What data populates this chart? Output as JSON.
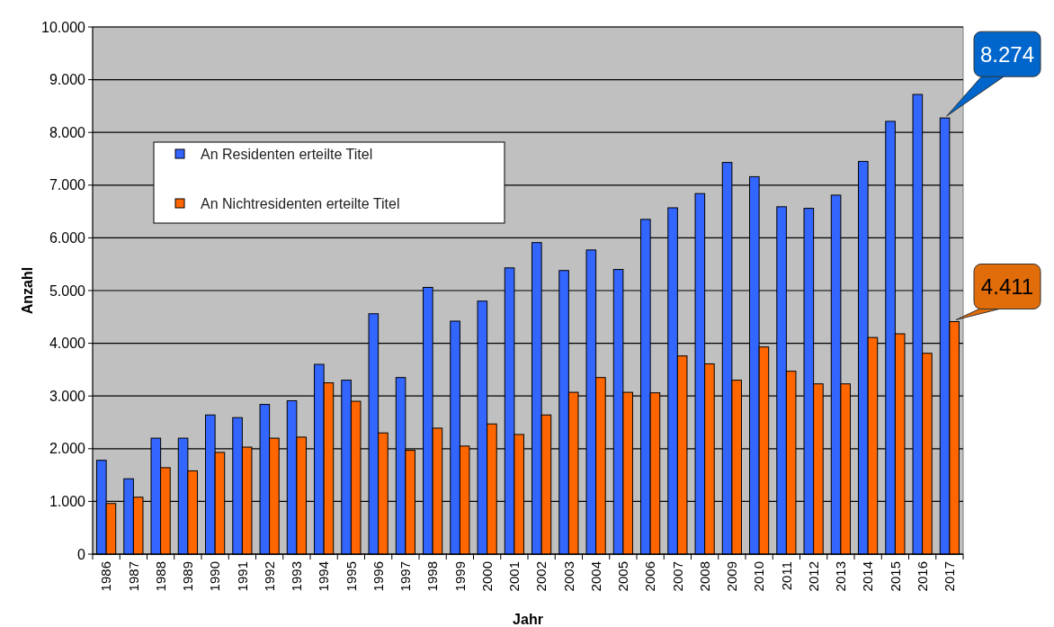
{
  "chart_data": {
    "type": "bar",
    "xlabel": "Jahr",
    "ylabel": "Anzahl",
    "categories": [
      "1986",
      "1987",
      "1988",
      "1989",
      "1990",
      "1991",
      "1992",
      "1993",
      "1994",
      "1995",
      "1996",
      "1997",
      "1998",
      "1999",
      "2000",
      "2001",
      "2002",
      "2003",
      "2004",
      "2005",
      "2006",
      "2007",
      "2008",
      "2009",
      "2010",
      "2011",
      "2012",
      "2013",
      "2014",
      "2015",
      "2016",
      "2017"
    ],
    "series": [
      {
        "name": "An Residenten erteilte Titel",
        "color": "#3366ff",
        "values": [
          1780,
          1430,
          2200,
          2200,
          2640,
          2590,
          2840,
          2910,
          3600,
          3300,
          4560,
          3350,
          5060,
          4420,
          4800,
          5430,
          5910,
          5380,
          5770,
          5400,
          6350,
          6570,
          6840,
          7430,
          7160,
          6590,
          6560,
          6810,
          7450,
          8210,
          8720,
          8274
        ]
      },
      {
        "name": "An Nichtresidenten erteilte Titel",
        "color": "#ff6600",
        "values": [
          960,
          1080,
          1640,
          1580,
          1930,
          2030,
          2200,
          2220,
          3250,
          2900,
          2300,
          1970,
          2390,
          2050,
          2470,
          2270,
          2640,
          3070,
          3350,
          3070,
          3060,
          3760,
          3610,
          3300,
          3930,
          3470,
          3230,
          3230,
          4110,
          4180,
          3810,
          4411
        ]
      }
    ],
    "ylim": [
      0,
      10000
    ],
    "yticks": [
      0,
      {
        "value": 1000,
        "label": "1.000"
      },
      {
        "value": 2000,
        "label": "2.000"
      },
      {
        "value": 3000,
        "label": "3.000"
      },
      {
        "value": 4000,
        "label": "4.000"
      },
      {
        "value": 5000,
        "label": "5.000"
      },
      {
        "value": 6000,
        "label": "6.000"
      },
      {
        "value": 7000,
        "label": "7.000"
      },
      {
        "value": 8000,
        "label": "8.000"
      },
      {
        "value": 9000,
        "label": "9.000"
      },
      {
        "value": 10000,
        "label": "10.000"
      }
    ],
    "grid": "y",
    "legend": "top left",
    "annotations": [
      {
        "text": "8.274",
        "x": "2017",
        "y": 8274
      },
      {
        "text": "4.411",
        "x": "2017",
        "y": 4411
      }
    ]
  }
}
